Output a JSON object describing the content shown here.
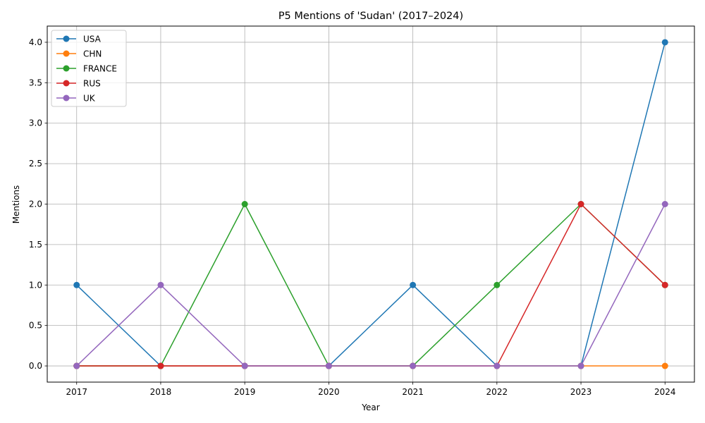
{
  "chart_data": {
    "type": "line",
    "title": "P5 Mentions of 'Sudan' (2017–2024)",
    "xlabel": "Year",
    "ylabel": "Mentions",
    "x": [
      2017,
      2018,
      2019,
      2020,
      2021,
      2022,
      2023,
      2024
    ],
    "x_tick_labels": [
      "2017",
      "2018",
      "2019",
      "2020",
      "2021",
      "2022",
      "2023",
      "2024"
    ],
    "xlim": [
      2016.65,
      2024.35
    ],
    "ylim": [
      -0.2,
      4.2
    ],
    "y_ticks": [
      0.0,
      0.5,
      1.0,
      1.5,
      2.0,
      2.5,
      3.0,
      3.5,
      4.0
    ],
    "y_tick_labels": [
      "0.0",
      "0.5",
      "1.0",
      "1.5",
      "2.0",
      "2.5",
      "3.0",
      "3.5",
      "4.0"
    ],
    "grid": true,
    "legend_position": "top-left",
    "series": [
      {
        "name": "USA",
        "color": "#1f77b4",
        "values": [
          1,
          0,
          0,
          0,
          1,
          0,
          0,
          4
        ]
      },
      {
        "name": "CHN",
        "color": "#ff7f0e",
        "values": [
          0,
          0,
          0,
          0,
          0,
          0,
          0,
          0
        ]
      },
      {
        "name": "FRANCE",
        "color": "#2ca02c",
        "values": [
          0,
          0,
          2,
          0,
          0,
          1,
          2,
          1
        ]
      },
      {
        "name": "RUS",
        "color": "#d62728",
        "values": [
          0,
          0,
          0,
          0,
          0,
          0,
          2,
          1
        ]
      },
      {
        "name": "UK",
        "color": "#9467bd",
        "values": [
          0,
          1,
          0,
          0,
          0,
          0,
          0,
          2
        ]
      }
    ]
  }
}
